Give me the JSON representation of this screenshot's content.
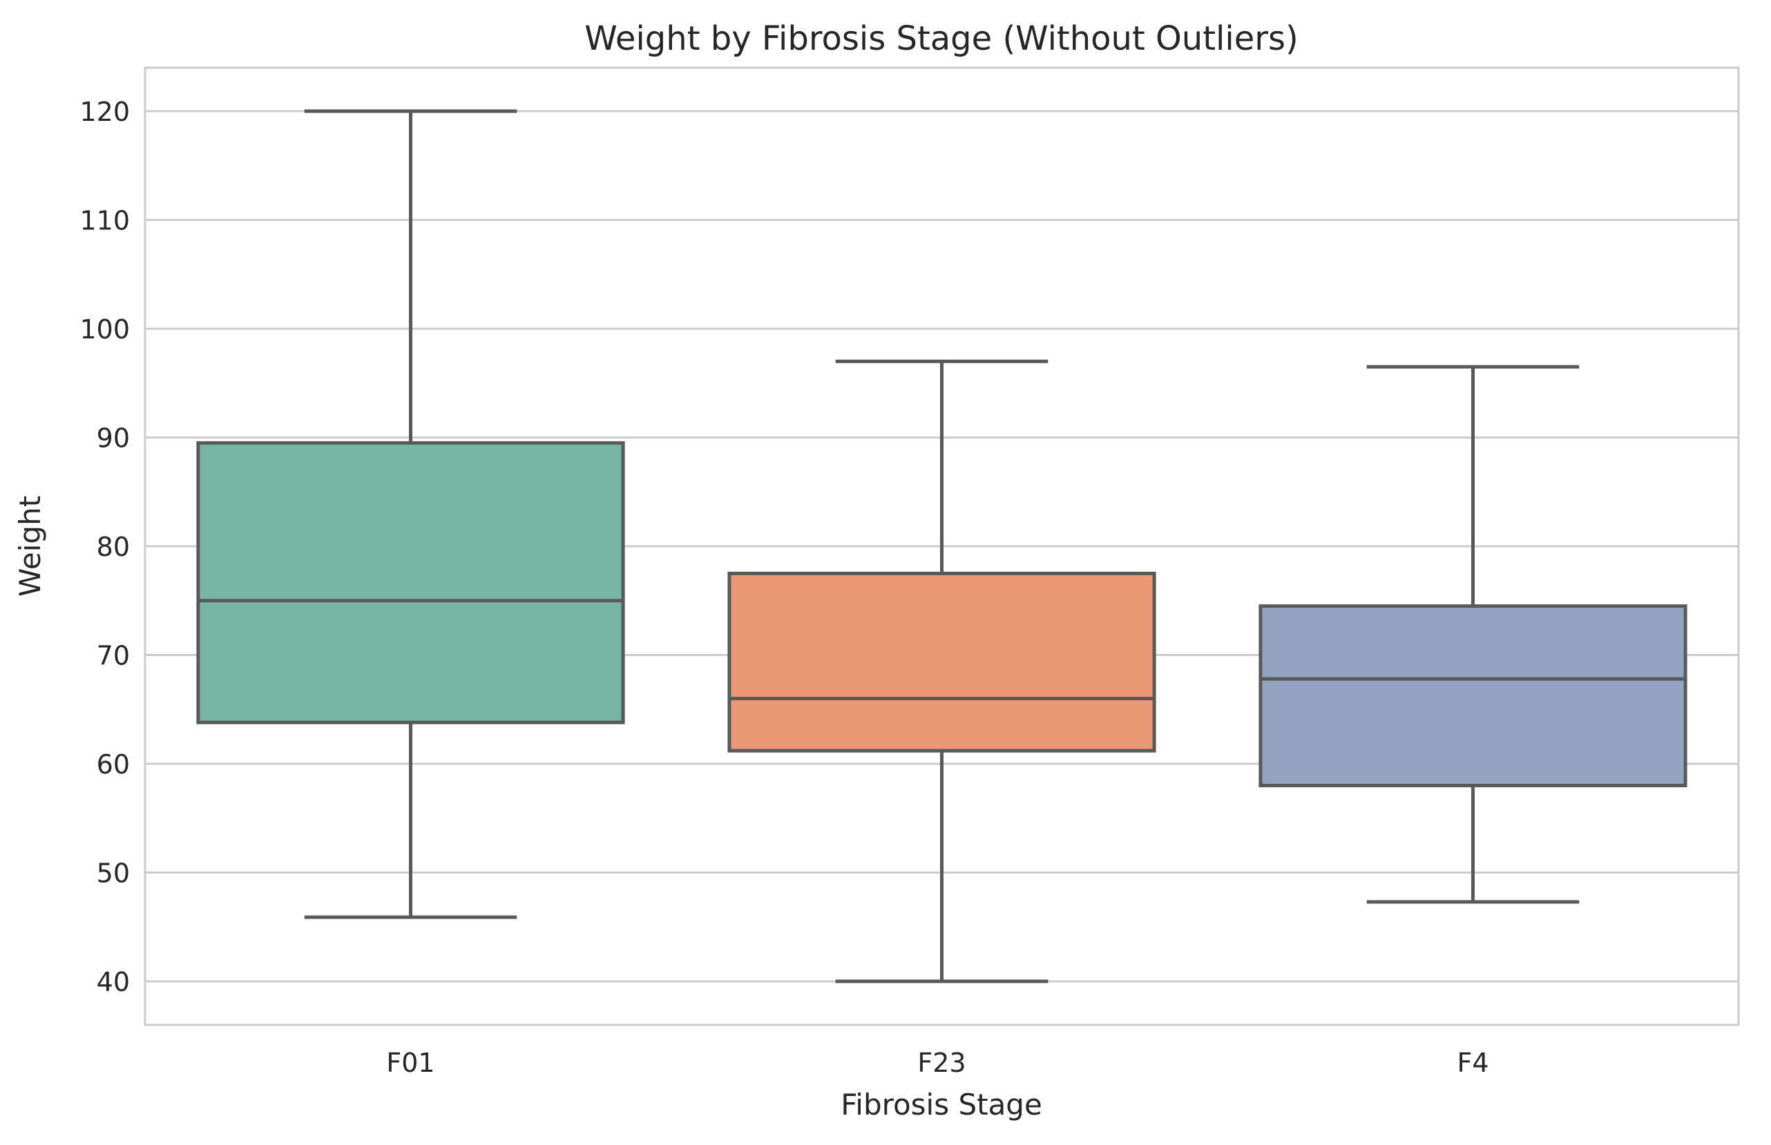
{
  "chart_data": {
    "type": "box",
    "title": "Weight by Fibrosis Stage (Without Outliers)",
    "xlabel": "Fibrosis Stage",
    "ylabel": "Weight",
    "ylim": [
      36,
      124
    ],
    "yticks": [
      40,
      50,
      60,
      70,
      80,
      90,
      100,
      110,
      120
    ],
    "grid": "horizontal",
    "categories": [
      "F01",
      "F23",
      "F4"
    ],
    "boxes": [
      {
        "category": "F01",
        "whisker_low": 45.9,
        "q1": 63.8,
        "median": 75.0,
        "q3": 89.5,
        "whisker_high": 120.0,
        "color": "#75B5A1"
      },
      {
        "category": "F23",
        "whisker_low": 40.0,
        "q1": 61.2,
        "median": 66.0,
        "q3": 77.5,
        "whisker_high": 97.0,
        "color": "#E99775"
      },
      {
        "category": "F4",
        "whisker_low": 47.3,
        "q1": 58.0,
        "median": 67.8,
        "q3": 74.5,
        "whisker_high": 96.5,
        "color": "#95A3C3"
      }
    ],
    "colors": {
      "line": "#595959",
      "grid": "#cccccc",
      "frame": "#cccccc",
      "text": "#262626"
    }
  }
}
